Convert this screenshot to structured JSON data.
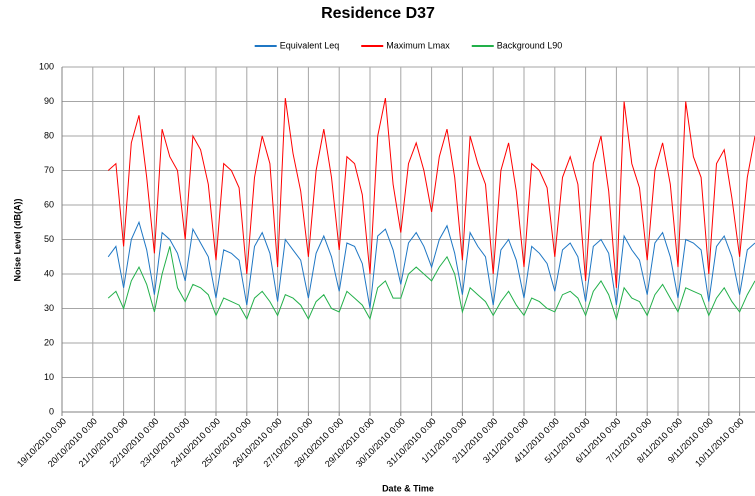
{
  "chart_data": {
    "type": "line",
    "title": "Residence D37",
    "xlabel": "Date & Time",
    "ylabel": "Noise Level (dB(A))",
    "x": [
      "20/10/2010 12:00",
      "20/10/2010 18:00",
      "21/10/2010 0:00",
      "21/10/2010 6:00",
      "21/10/2010 12:00",
      "21/10/2010 18:00",
      "22/10/2010 0:00",
      "22/10/2010 6:00",
      "22/10/2010 12:00",
      "22/10/2010 18:00",
      "23/10/2010 0:00",
      "23/10/2010 6:00",
      "23/10/2010 12:00",
      "23/10/2010 18:00",
      "24/10/2010 0:00",
      "24/10/2010 6:00",
      "24/10/2010 12:00",
      "24/10/2010 18:00",
      "25/10/2010 0:00",
      "25/10/2010 6:00",
      "25/10/2010 12:00",
      "25/10/2010 18:00",
      "26/10/2010 0:00",
      "26/10/2010 6:00",
      "26/10/2010 12:00",
      "26/10/2010 18:00",
      "27/10/2010 0:00",
      "27/10/2010 6:00",
      "27/10/2010 12:00",
      "27/10/2010 18:00",
      "28/10/2010 0:00",
      "28/10/2010 6:00",
      "28/10/2010 12:00",
      "28/10/2010 18:00",
      "29/10/2010 0:00",
      "29/10/2010 6:00",
      "29/10/2010 12:00",
      "29/10/2010 18:00",
      "30/10/2010 0:00",
      "30/10/2010 6:00",
      "30/10/2010 12:00",
      "30/10/2010 18:00",
      "31/10/2010 0:00",
      "31/10/2010 6:00",
      "31/10/2010 12:00",
      "31/10/2010 18:00",
      "1/11/2010 0:00",
      "1/11/2010 6:00",
      "1/11/2010 12:00",
      "1/11/2010 18:00",
      "2/11/2010 0:00",
      "2/11/2010 6:00",
      "2/11/2010 12:00",
      "2/11/2010 18:00",
      "3/11/2010 0:00",
      "3/11/2010 6:00",
      "3/11/2010 12:00",
      "3/11/2010 18:00",
      "4/11/2010 0:00",
      "4/11/2010 6:00",
      "4/11/2010 12:00",
      "4/11/2010 18:00",
      "5/11/2010 0:00",
      "5/11/2010 6:00",
      "5/11/2010 12:00",
      "5/11/2010 18:00",
      "6/11/2010 0:00",
      "6/11/2010 6:00",
      "6/11/2010 12:00",
      "6/11/2010 18:00",
      "7/11/2010 0:00",
      "7/11/2010 6:00",
      "7/11/2010 12:00",
      "7/11/2010 18:00",
      "8/11/2010 0:00",
      "8/11/2010 6:00",
      "8/11/2010 12:00",
      "8/11/2010 18:00",
      "9/11/2010 0:00",
      "9/11/2010 6:00",
      "9/11/2010 12:00",
      "9/11/2010 18:00",
      "10/11/2010 0:00",
      "10/11/2010 6:00",
      "10/11/2010 12:00"
    ],
    "series": [
      {
        "name": "Equivalent  Leq",
        "color": "#1f77c4",
        "values": [
          45,
          48,
          36,
          50,
          55,
          47,
          34,
          52,
          50,
          46,
          38,
          53,
          49,
          45,
          33,
          47,
          46,
          44,
          31,
          48,
          52,
          46,
          32,
          50,
          47,
          44,
          33,
          46,
          51,
          45,
          35,
          49,
          48,
          43,
          30,
          51,
          53,
          47,
          37,
          49,
          52,
          48,
          42,
          50,
          54,
          46,
          34,
          52,
          48,
          45,
          31,
          47,
          50,
          44,
          33,
          48,
          46,
          43,
          35,
          47,
          49,
          45,
          32,
          48,
          50,
          46,
          31,
          51,
          47,
          44,
          34,
          49,
          52,
          45,
          33,
          50,
          49,
          47,
          32,
          48,
          51,
          45,
          34,
          47,
          49
        ]
      },
      {
        "name": "Maximum Lmax",
        "color": "#ff0000",
        "values": [
          70,
          72,
          48,
          78,
          86,
          68,
          46,
          82,
          74,
          70,
          50,
          80,
          76,
          66,
          44,
          72,
          70,
          65,
          40,
          68,
          80,
          72,
          42,
          91,
          75,
          64,
          45,
          70,
          82,
          68,
          47,
          74,
          72,
          63,
          40,
          80,
          91,
          66,
          52,
          72,
          78,
          70,
          58,
          74,
          82,
          68,
          44,
          80,
          72,
          66,
          40,
          70,
          78,
          64,
          42,
          72,
          70,
          65,
          45,
          68,
          74,
          66,
          38,
          72,
          80,
          64,
          36,
          90,
          72,
          65,
          44,
          70,
          78,
          66,
          42,
          90,
          74,
          68,
          40,
          72,
          76,
          62,
          45,
          68,
          80
        ]
      },
      {
        "name": "Background L90",
        "color": "#22b04a",
        "values": [
          33,
          35,
          30,
          38,
          42,
          37,
          29,
          40,
          48,
          36,
          32,
          37,
          36,
          34,
          28,
          33,
          32,
          31,
          27,
          33,
          35,
          32,
          28,
          34,
          33,
          31,
          27,
          32,
          34,
          30,
          29,
          35,
          33,
          31,
          27,
          36,
          38,
          33,
          33,
          40,
          42,
          40,
          38,
          42,
          45,
          40,
          29,
          36,
          34,
          32,
          28,
          32,
          35,
          31,
          28,
          33,
          32,
          30,
          29,
          34,
          35,
          33,
          28,
          35,
          38,
          34,
          27,
          36,
          33,
          32,
          28,
          34,
          37,
          33,
          29,
          36,
          35,
          34,
          28,
          33,
          36,
          32,
          29,
          34,
          38
        ]
      }
    ],
    "xlim": [
      "19/10/2010 0:00",
      "10/11/2010 12:00"
    ],
    "xticks": [
      "19/10/2010 0:00",
      "20/10/2010 0:00",
      "21/10/2010 0:00",
      "22/10/2010 0:00",
      "23/10/2010 0:00",
      "24/10/2010 0:00",
      "25/10/2010 0:00",
      "26/10/2010 0:00",
      "27/10/2010 0:00",
      "28/10/2010 0:00",
      "29/10/2010 0:00",
      "30/10/2010 0:00",
      "31/10/2010 0:00",
      "1/11/2010 0:00",
      "2/11/2010 0:00",
      "3/11/2010 0:00",
      "4/11/2010 0:00",
      "5/11/2010 0:00",
      "6/11/2010 0:00",
      "7/11/2010 0:00",
      "8/11/2010 0:00",
      "9/11/2010 0:00",
      "10/11/2010 0:00"
    ],
    "ylim": [
      0,
      100
    ],
    "yticks": [
      0,
      10,
      20,
      30,
      40,
      50,
      60,
      70,
      80,
      90,
      100
    ],
    "grid": true,
    "legend": "top"
  }
}
